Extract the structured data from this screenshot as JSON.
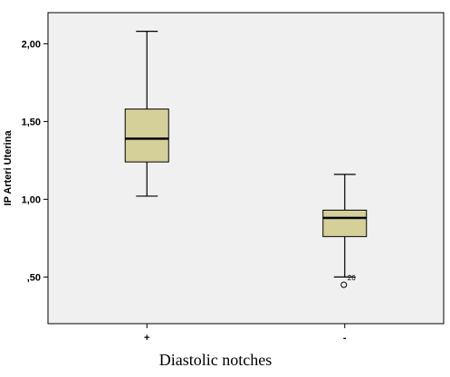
{
  "chart_data": {
    "type": "boxplot",
    "title": "",
    "xlabel": "Diastolic notches",
    "ylabel": "IP Arteri Uterina",
    "ylim": [
      0.2,
      2.2
    ],
    "y_ticks": [
      {
        "value": 0.5,
        "label": ",50"
      },
      {
        "value": 1.0,
        "label": "1,00"
      },
      {
        "value": 1.5,
        "label": "1,50"
      },
      {
        "value": 2.0,
        "label": "2,00"
      }
    ],
    "categories": [
      "+",
      "-"
    ],
    "boxes": [
      {
        "category": "+",
        "min": 1.02,
        "q1": 1.24,
        "median": 1.39,
        "q3": 1.58,
        "max": 2.08,
        "outliers": []
      },
      {
        "category": "-",
        "min": 0.5,
        "q1": 0.76,
        "median": 0.88,
        "q3": 0.93,
        "max": 1.16,
        "outliers": [
          {
            "value": 0.45,
            "label": "26"
          }
        ]
      }
    ],
    "grid": false,
    "legend": "none",
    "colors": {
      "box_fill": "#d5cf9a",
      "plot_background": "#f0f0f0",
      "line": "#000000"
    }
  }
}
